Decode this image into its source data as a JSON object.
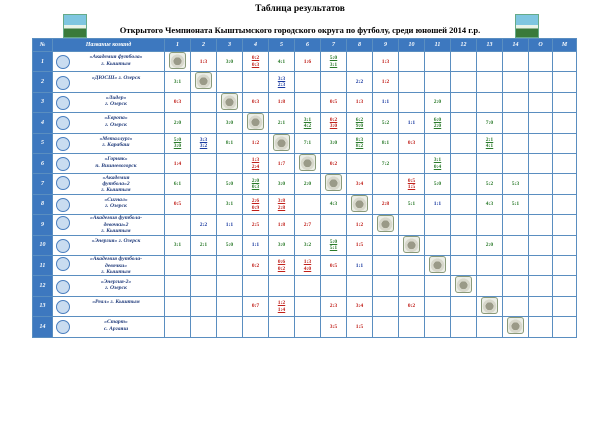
{
  "title": "Таблица результатов",
  "subtitle": "Открытого Чемпионата Кыштымского городского округа по футболу, среди юношей 2014 г.р.",
  "headers": {
    "num": "№",
    "team": "Название команд",
    "o": "О",
    "m": "М"
  },
  "columns": [
    "1",
    "2",
    "3",
    "4",
    "5",
    "6",
    "7",
    "8",
    "9",
    "10",
    "11",
    "12",
    "13",
    "14"
  ],
  "colors": {
    "header_bg": "#3d78bf",
    "win": "#2a7a2a",
    "loss": "#c0201a",
    "draw": "#1a3aa0"
  },
  "rows": [
    {
      "n": "1",
      "team": "«Академия футбола»\nг. Кыштым",
      "cells": [
        "",
        "1:3",
        "3:0",
        "0:2\n0:3",
        "4:1",
        "1:6",
        "5:0\n3:1",
        "",
        "1:3",
        "",
        "",
        "",
        "",
        ""
      ]
    },
    {
      "n": "2",
      "team": "«ДЮСШ» г. Озерск",
      "cells": [
        "3:1",
        "",
        "",
        "",
        "3:3\n2:3",
        "",
        "",
        "2:2",
        "1:2",
        "",
        "",
        "",
        "",
        ""
      ]
    },
    {
      "n": "3",
      "team": "«Лидер»\nг. Озерск",
      "cells": [
        "0:3",
        "",
        "",
        "0:3",
        "1:8",
        "",
        "0:5",
        "1:3",
        "1:1",
        "",
        "2:0",
        "",
        "",
        ""
      ]
    },
    {
      "n": "4",
      "team": "«Европа»\nг. Озерск",
      "cells": [
        "2:0",
        "",
        "3:0",
        "",
        "2:1",
        "3:1\n4:2",
        "0:2\n3:0",
        "6:2\n9:0",
        "5:2",
        "1:1",
        "6:0\n2:0",
        "",
        "7:0",
        ""
      ]
    },
    {
      "n": "5",
      "team": "«Металлург»\nг. Карабаш",
      "cells": [
        "5:0\n3:0",
        "3:3\n3:2",
        "8:1",
        "1:2",
        "",
        "7:1",
        "3:0",
        "8:3\n8:2",
        "8:1",
        "0:3",
        "",
        "",
        "2:1\n4:1",
        ""
      ]
    },
    {
      "n": "6",
      "team": "«Горняк»\nп. Вишневогорск",
      "cells": [
        "1:4",
        "",
        "",
        "1:3\n2:4",
        "1:7",
        "",
        "0:2",
        "",
        "7:2",
        "",
        "3:1\n0:4",
        "",
        "",
        ""
      ]
    },
    {
      "n": "7",
      "team": "«Академия\nфутбола»2\nг. Кыштым",
      "cells": [
        "6:1",
        "",
        "5:0",
        "2:0\n0:3",
        "3:0",
        "2:0",
        "",
        "3:4",
        "",
        "0:5\n1:5",
        "5:0",
        "",
        "5:2",
        "5:3"
      ]
    },
    {
      "n": "8",
      "team": "«Сигнал»\nг. Озерск",
      "cells": [
        "0:5",
        "",
        "3:1",
        "2:6\n0:9",
        "3:8\n2:8",
        "",
        "4:3",
        "",
        "2:8",
        "5:1",
        "1:1",
        "",
        "4:3",
        "5:1"
      ]
    },
    {
      "n": "9",
      "team": "«Академия футбола-\nдевочки»2\nг. Кыштым",
      "cells": [
        "",
        "2:2",
        "1:1",
        "2:5",
        "1:8",
        "2:7",
        "",
        "1:2",
        "",
        "",
        "",
        "",
        "",
        ""
      ]
    },
    {
      "n": "10",
      "team": "«Энергия» г. Озерск",
      "cells": [
        "3:1",
        "2:1",
        "5:0",
        "1:1",
        "3:0",
        "3:2",
        "5:0\n5:1",
        "1:5",
        "",
        "",
        "",
        "",
        "2:0",
        ""
      ]
    },
    {
      "n": "11",
      "team": "«Академия футбола-\nдевочки»\nг. Кыштым",
      "cells": [
        "",
        "",
        "",
        "0:2",
        "0:6\n0:2",
        "1:3\n4:0",
        "0:5",
        "1:1",
        "",
        "",
        "",
        "",
        "",
        ""
      ]
    },
    {
      "n": "12",
      "team": "«Энергия-2»\nг. Озерск",
      "cells": [
        "",
        "",
        "",
        "",
        "",
        "",
        "",
        "",
        "",
        "",
        "",
        "",
        "",
        ""
      ]
    },
    {
      "n": "13",
      "team": "«Реал» г. Кыштым",
      "cells": [
        "",
        "",
        "",
        "0:7",
        "1:2\n1:4",
        "",
        "2:3",
        "3:4",
        "",
        "0:2",
        "",
        "",
        "",
        ""
      ]
    },
    {
      "n": "14",
      "team": "«Старт»\nс. Аргаяш",
      "cells": [
        "",
        "",
        "",
        "",
        "",
        "",
        "3:5",
        "1:5",
        "",
        "",
        "",
        "",
        "",
        ""
      ]
    }
  ]
}
